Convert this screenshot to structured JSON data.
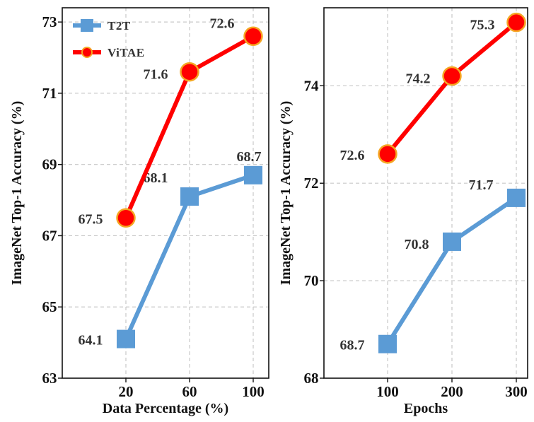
{
  "chart_data": [
    {
      "type": "line",
      "xlabel": "Data Percentage (%)",
      "ylabel": "ImageNet Top-1 Accuracy (%)",
      "categories": [
        "20",
        "60",
        "100"
      ],
      "yticks": [
        "63",
        "65",
        "67",
        "69",
        "71",
        "73"
      ],
      "ylim": [
        63,
        73.4
      ],
      "grid": true,
      "legend": "top-left",
      "series": [
        {
          "name": "T2T",
          "values": [
            64.1,
            68.1,
            68.7
          ],
          "labels": [
            "64.1",
            "68.1",
            "68.7"
          ],
          "color": "#5b9bd5",
          "marker": "square"
        },
        {
          "name": "ViTAE",
          "values": [
            67.5,
            71.6,
            72.6
          ],
          "labels": [
            "67.5",
            "71.6",
            "72.6"
          ],
          "color": "#ff0000",
          "marker": "circle",
          "marker_edge": "#f5a623"
        }
      ]
    },
    {
      "type": "line",
      "xlabel": "Epochs",
      "ylabel": "ImageNet Top-1 Accuracy (%)",
      "categories": [
        "100",
        "200",
        "300"
      ],
      "yticks": [
        "68",
        "70",
        "72",
        "74"
      ],
      "ylim": [
        68,
        75.6
      ],
      "grid": true,
      "series": [
        {
          "name": "T2T",
          "values": [
            68.7,
            70.8,
            71.7
          ],
          "labels": [
            "68.7",
            "70.8",
            "71.7"
          ],
          "color": "#5b9bd5",
          "marker": "square"
        },
        {
          "name": "ViTAE",
          "values": [
            72.6,
            74.2,
            75.3
          ],
          "labels": [
            "72.6",
            "74.2",
            "75.3"
          ],
          "color": "#ff0000",
          "marker": "circle",
          "marker_edge": "#f5a623"
        }
      ]
    }
  ]
}
